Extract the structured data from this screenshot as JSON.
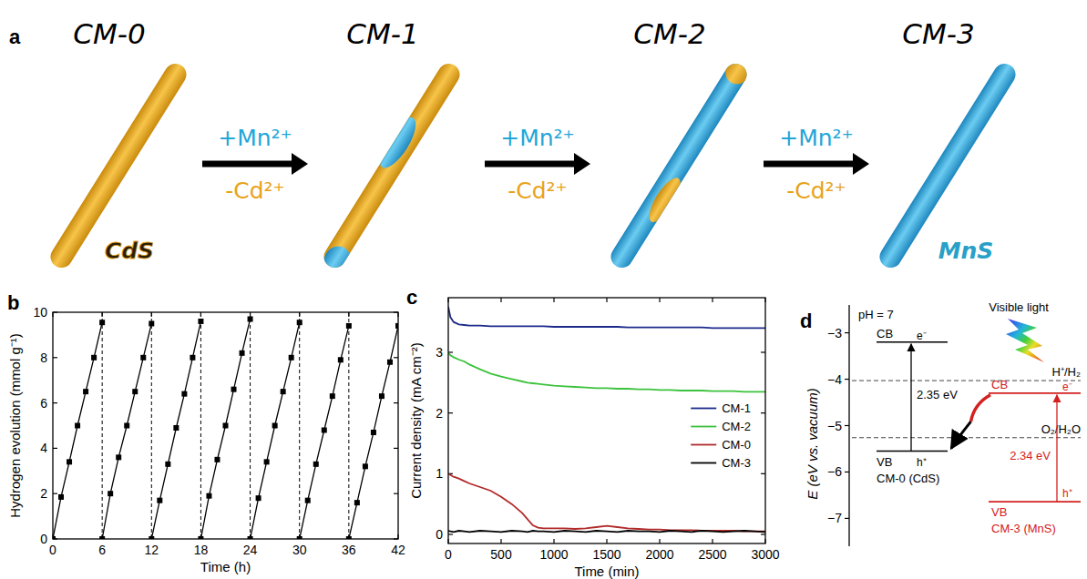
{
  "panel_a": {
    "letter": "a",
    "stages": [
      "CM-0",
      "CM-1",
      "CM-2",
      "CM-3"
    ],
    "start_material": "CdS",
    "end_material": "MnS",
    "arrows": [
      {
        "add": "+Mn²⁺",
        "remove": "-Cd²⁺"
      },
      {
        "add": "+Mn²⁺",
        "remove": "-Cd²⁺"
      },
      {
        "add": "+Mn²⁺",
        "remove": "-Cd²⁺"
      }
    ]
  },
  "chart_data": [
    {
      "letter": "b",
      "type": "line",
      "x_label": "Time (h)",
      "y_label": "Hydrogen evolution (mmol g⁻¹)",
      "xlim": [
        0,
        42
      ],
      "xticks": [
        0,
        6,
        12,
        18,
        24,
        30,
        36,
        42
      ],
      "ylim": [
        0,
        10
      ],
      "yticks": [
        0,
        2,
        4,
        6,
        8,
        10
      ],
      "grid": false,
      "marker": "square",
      "cycle_boundaries": [
        6,
        12,
        18,
        24,
        30,
        36
      ],
      "series": [
        {
          "color": "#000000",
          "x": [
            0,
            1,
            2,
            3,
            4,
            5,
            6
          ],
          "values": [
            0,
            1.85,
            3.4,
            5.0,
            6.5,
            8.0,
            9.55
          ]
        },
        {
          "color": "#000000",
          "x": [
            6,
            7,
            8,
            9,
            10,
            11,
            12
          ],
          "values": [
            0,
            2.0,
            3.6,
            5.0,
            6.5,
            8.0,
            9.5
          ]
        },
        {
          "color": "#000000",
          "x": [
            12,
            13,
            14,
            15,
            16,
            17,
            18
          ],
          "values": [
            0,
            1.7,
            3.3,
            4.9,
            6.4,
            8.0,
            9.6
          ]
        },
        {
          "color": "#000000",
          "x": [
            18,
            19,
            20,
            21,
            22,
            23,
            24
          ],
          "values": [
            0,
            1.9,
            3.5,
            5.0,
            6.6,
            8.2,
            9.7
          ]
        },
        {
          "color": "#000000",
          "x": [
            24,
            25,
            26,
            27,
            28,
            29,
            30
          ],
          "values": [
            0,
            1.8,
            3.4,
            5.0,
            6.5,
            8.0,
            9.55
          ]
        },
        {
          "color": "#000000",
          "x": [
            30,
            31,
            32,
            33,
            34,
            35,
            36
          ],
          "values": [
            0,
            1.7,
            3.3,
            4.8,
            6.3,
            7.9,
            9.4
          ]
        },
        {
          "color": "#000000",
          "x": [
            36,
            37,
            38,
            39,
            40,
            41,
            42
          ],
          "values": [
            0,
            1.6,
            3.2,
            4.7,
            6.3,
            7.8,
            9.4
          ]
        }
      ]
    },
    {
      "letter": "c",
      "type": "line",
      "x_label": "Time (min)",
      "y_label": "Current density (mA cm⁻²)",
      "xlim": [
        0,
        3000
      ],
      "xticks": [
        0,
        500,
        1000,
        1500,
        2000,
        2500,
        3000
      ],
      "ylim": [
        -0.15,
        3.9
      ],
      "yticks": [
        0,
        1,
        2,
        3
      ],
      "grid": false,
      "legend": "right",
      "x": [
        0,
        20,
        50,
        100,
        150,
        200,
        300,
        400,
        500,
        600,
        700,
        750,
        800,
        850,
        900,
        1000,
        1100,
        1200,
        1300,
        1400,
        1500,
        1600,
        1700,
        1800,
        1900,
        2000,
        2100,
        2200,
        2300,
        2400,
        2500,
        2600,
        2700,
        2800,
        2900,
        3000
      ],
      "series": [
        {
          "name": "CM-1",
          "color": "#1c2a8c",
          "values": [
            3.75,
            3.58,
            3.5,
            3.46,
            3.45,
            3.44,
            3.44,
            3.43,
            3.43,
            3.43,
            3.43,
            3.43,
            3.43,
            3.43,
            3.43,
            3.42,
            3.42,
            3.42,
            3.42,
            3.42,
            3.42,
            3.42,
            3.41,
            3.41,
            3.41,
            3.41,
            3.41,
            3.41,
            3.41,
            3.41,
            3.4,
            3.4,
            3.4,
            3.4,
            3.4,
            3.4
          ]
        },
        {
          "name": "CM-2",
          "color": "#3cc23c",
          "values": [
            3.0,
            2.95,
            2.92,
            2.88,
            2.85,
            2.8,
            2.72,
            2.65,
            2.6,
            2.56,
            2.52,
            2.5,
            2.49,
            2.48,
            2.47,
            2.45,
            2.44,
            2.43,
            2.42,
            2.41,
            2.41,
            2.4,
            2.4,
            2.39,
            2.39,
            2.38,
            2.38,
            2.37,
            2.37,
            2.37,
            2.36,
            2.36,
            2.36,
            2.35,
            2.35,
            2.35
          ]
        },
        {
          "name": "CM-0",
          "color": "#b22a2a",
          "values": [
            1.0,
            0.98,
            0.95,
            0.92,
            0.88,
            0.84,
            0.78,
            0.72,
            0.62,
            0.5,
            0.35,
            0.25,
            0.15,
            0.11,
            0.1,
            0.1,
            0.1,
            0.09,
            0.1,
            0.12,
            0.14,
            0.12,
            0.1,
            0.09,
            0.08,
            0.08,
            0.07,
            0.07,
            0.07,
            0.06,
            0.06,
            0.06,
            0.06,
            0.05,
            0.05,
            0.05
          ]
        },
        {
          "name": "CM-3",
          "color": "#000000",
          "values": [
            0.06,
            0.05,
            0.04,
            0.06,
            0.05,
            0.04,
            0.06,
            0.05,
            0.04,
            0.06,
            0.05,
            0.04,
            0.06,
            0.05,
            0.05,
            0.04,
            0.06,
            0.05,
            0.04,
            0.06,
            0.05,
            0.04,
            0.06,
            0.05,
            0.05,
            0.04,
            0.06,
            0.05,
            0.04,
            0.06,
            0.05,
            0.04,
            0.05,
            0.06,
            0.05,
            0.04
          ]
        }
      ]
    }
  ],
  "panel_d": {
    "letter": "d",
    "condition": "pH = 7",
    "y_label": "E (eV vs. vacuum)",
    "light_label": "Visible light",
    "ylim": [
      -7.6,
      -2.4
    ],
    "yticks": [
      {
        "value": -3,
        "label": "−3"
      },
      {
        "value": -4,
        "label": "−4"
      },
      {
        "value": -5,
        "label": "−5"
      },
      {
        "value": -6,
        "label": "−6"
      },
      {
        "value": -7,
        "label": "−7"
      }
    ],
    "references": [
      {
        "label": "H⁺/H₂",
        "value": -4.03
      },
      {
        "label": "O₂/H₂O",
        "value": -5.26
      }
    ],
    "materials": [
      {
        "name": "CM-0 (CdS)",
        "color": "#000000",
        "cb": -3.2,
        "vb": -5.55,
        "cb_label": "CB",
        "vb_label": "VB",
        "gap_label": "2.35 eV",
        "electron": "e⁻",
        "hole": "h⁺"
      },
      {
        "name": "CM-3 (MnS)",
        "color": "#d42020",
        "cb": -4.3,
        "vb": -6.64,
        "cb_label": "CB",
        "vb_label": "VB",
        "gap_label": "2.34 eV",
        "electron": "e⁻",
        "hole": "h⁺"
      }
    ]
  }
}
